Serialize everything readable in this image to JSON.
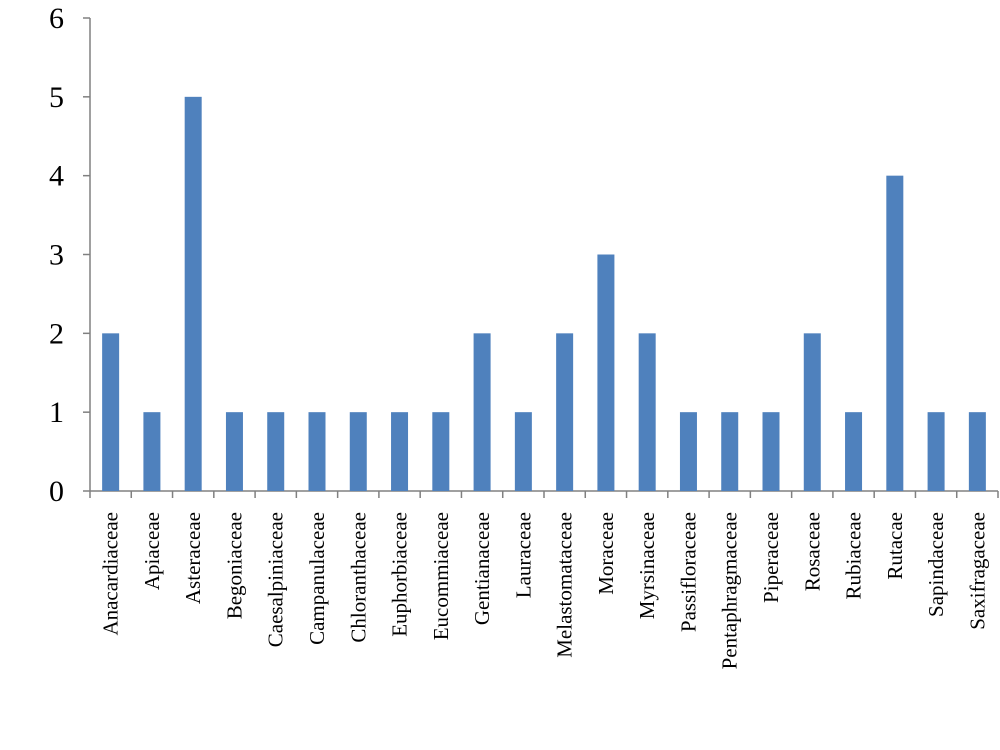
{
  "chart_data": {
    "type": "bar",
    "title": "",
    "xlabel": "",
    "ylabel": "",
    "categories": [
      "Anacardiaceae",
      "Apiaceae",
      "Asteraceae",
      "Begoniaceae",
      "Caesalpiniaceae",
      "Campanulaceae",
      "Chloranthaceae",
      "Euphorbiaceae",
      "Eucommiaceae",
      "Gentianaceae",
      "Lauraceae",
      "Melastomataceae",
      "Moraceae",
      "Myrsinaceae",
      "Passifloraceae",
      "Pentaphragmaceae",
      "Piperaceae",
      "Rosaceae",
      "Rubiaceae",
      "Rutacae",
      "Sapindaceae",
      "Saxifragaceae"
    ],
    "values": [
      2,
      1,
      5,
      1,
      1,
      1,
      1,
      1,
      1,
      2,
      1,
      2,
      3,
      2,
      1,
      1,
      1,
      2,
      1,
      4,
      1,
      1
    ],
    "ylim": [
      0,
      6
    ],
    "yticks": [
      0,
      1,
      2,
      3,
      4,
      5,
      6
    ],
    "grid": false,
    "legend": "none",
    "bar_color": "#4f81bd"
  }
}
